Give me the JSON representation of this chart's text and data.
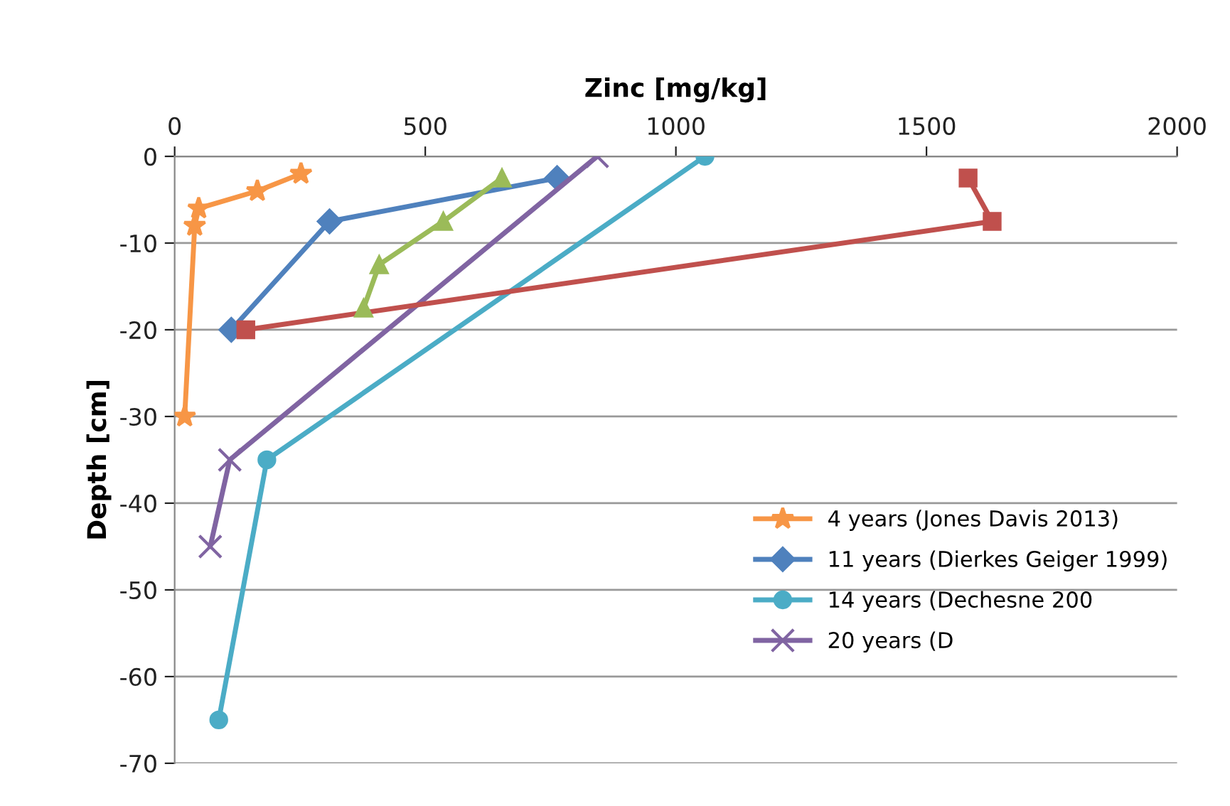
{
  "chart_data": {
    "type": "line",
    "xlabel": "Zinc [mg/kg]",
    "ylabel": "Depth [cm]",
    "xlim": [
      0,
      2000
    ],
    "xticks": [
      0,
      500,
      1000,
      1500,
      2000
    ],
    "ylim": [
      -70,
      0
    ],
    "yticks": [
      -70,
      -60,
      -50,
      -40,
      -30,
      -20,
      -10,
      0
    ],
    "grid": "y",
    "legend": "right",
    "line_style": "solid",
    "series": [
      {
        "name": "4 years (Jones Davis 2013)",
        "color": "#f79646",
        "marker": "star",
        "x": [
          252,
          165,
          48,
          40,
          20
        ],
        "values": [
          -2,
          -4,
          -6,
          -8,
          -30
        ]
      },
      {
        "name": "11 years (Dierkes Geiger 1999)",
        "color": "#4f81bd",
        "marker": "diamond",
        "x": [
          763,
          309,
          113
        ],
        "values": [
          -2.5,
          -7.5,
          -20
        ]
      },
      {
        "name": "14 years (Dechesne 200",
        "color": "#4bacc6",
        "marker": "circle",
        "x": [
          1058,
          184,
          88
        ],
        "values": [
          0,
          -35,
          -65
        ]
      },
      {
        "name": "20 years (D",
        "color": "#8064a2",
        "marker": "cross",
        "x": [
          843,
          110,
          71
        ],
        "values": [
          0,
          -35,
          -45
        ]
      },
      {
        "color": "#c0504d",
        "marker": "square",
        "x": [
          1583,
          1631,
          142
        ],
        "values": [
          -2.5,
          -7.5,
          -20
        ]
      },
      {
        "color": "#9bbb59",
        "marker": "triangle",
        "x": [
          653,
          536,
          408,
          377
        ],
        "values": [
          -2.5,
          -7.5,
          -12.5,
          -17.5
        ]
      }
    ]
  }
}
